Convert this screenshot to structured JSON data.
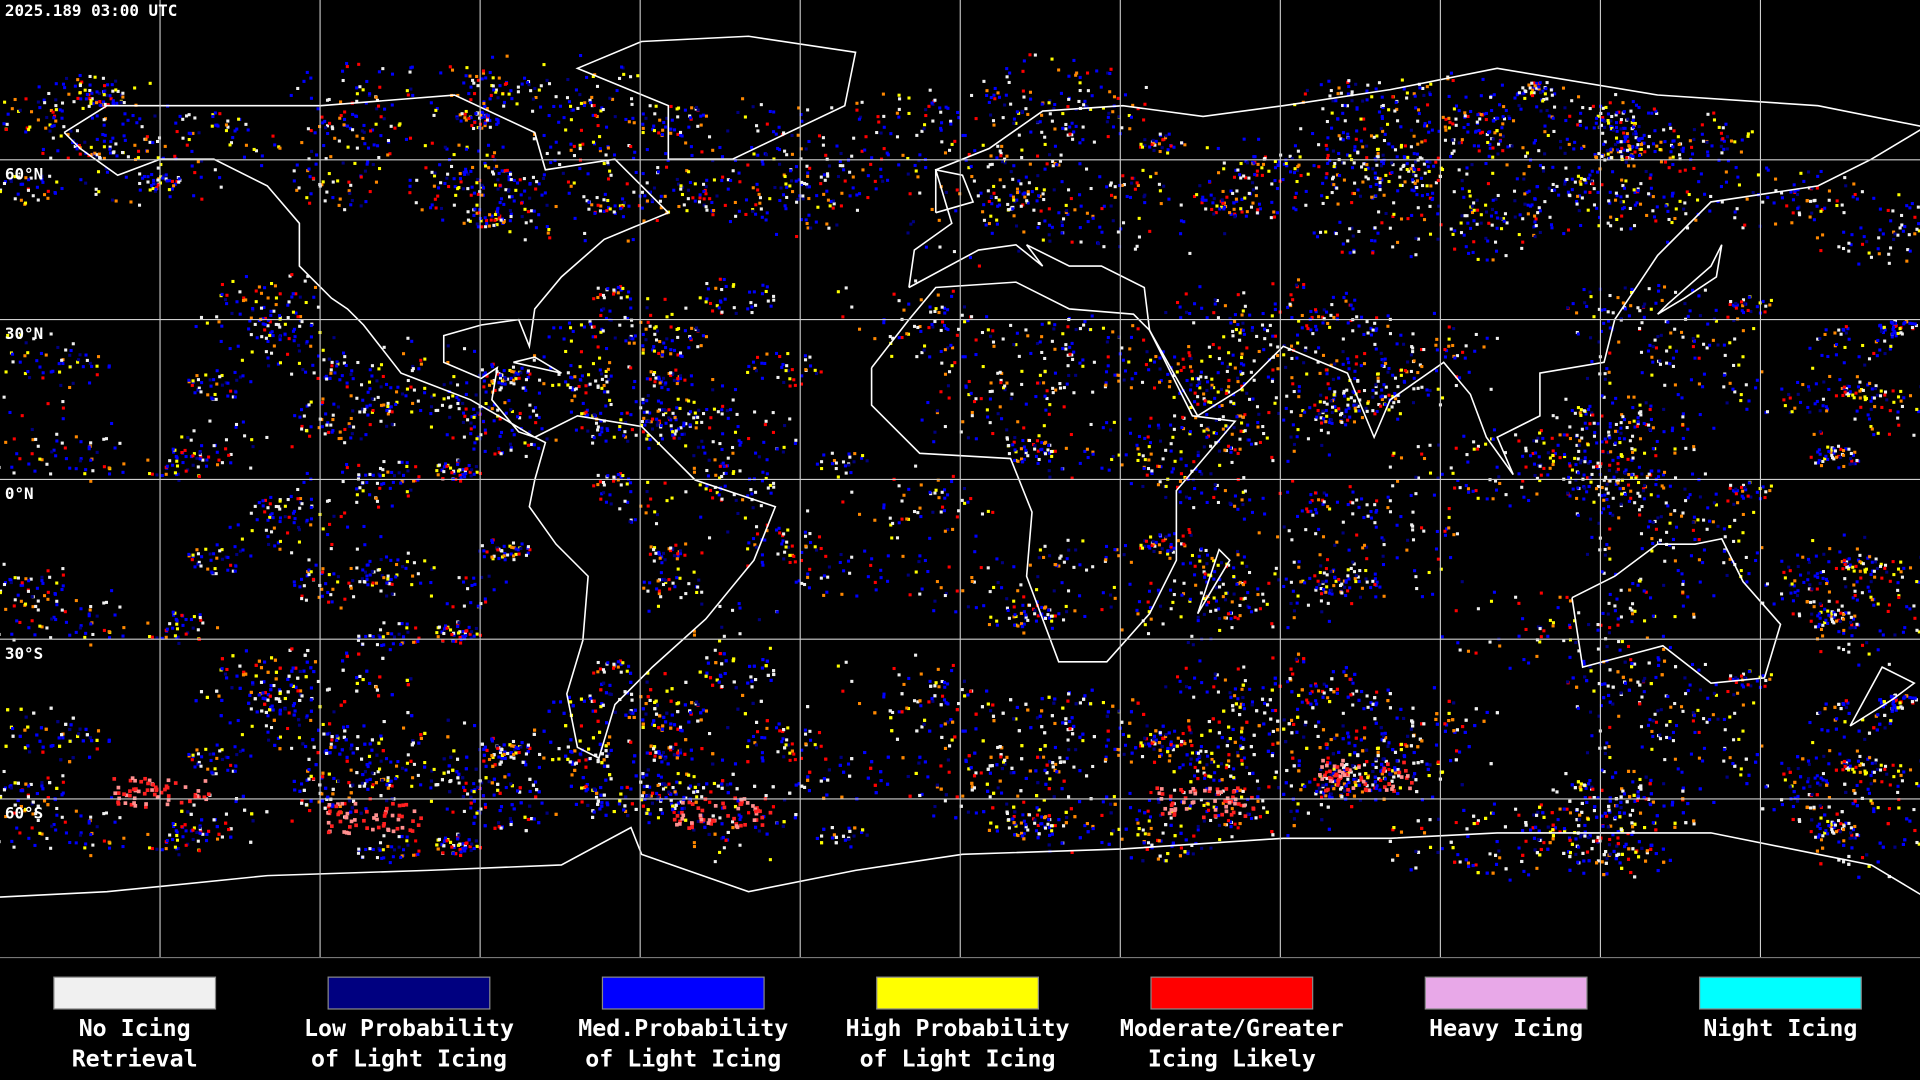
{
  "header": {
    "timestamp": "2025.189 03:00 UTC"
  },
  "map": {
    "lat_labels": [
      "60°N",
      "30°N",
      "0°N",
      "30°S",
      "60°S"
    ]
  },
  "legend": {
    "items": [
      {
        "color": "#f0f0f0",
        "lines": [
          "No Icing",
          "Retrieval"
        ]
      },
      {
        "color": "#000080",
        "lines": [
          "Low Probability",
          "of Light Icing"
        ]
      },
      {
        "color": "#0000ff",
        "lines": [
          "Med.Probability",
          "of Light Icing"
        ]
      },
      {
        "color": "#ffff00",
        "lines": [
          "High Probability",
          "of Light Icing"
        ]
      },
      {
        "color": "#ff0000",
        "lines": [
          "Moderate/Greater",
          "Icing Likely"
        ]
      },
      {
        "color": "#e8a8e8",
        "lines": [
          "Heavy Icing"
        ]
      },
      {
        "color": "#00ffff",
        "lines": [
          "Night Icing"
        ]
      }
    ]
  }
}
